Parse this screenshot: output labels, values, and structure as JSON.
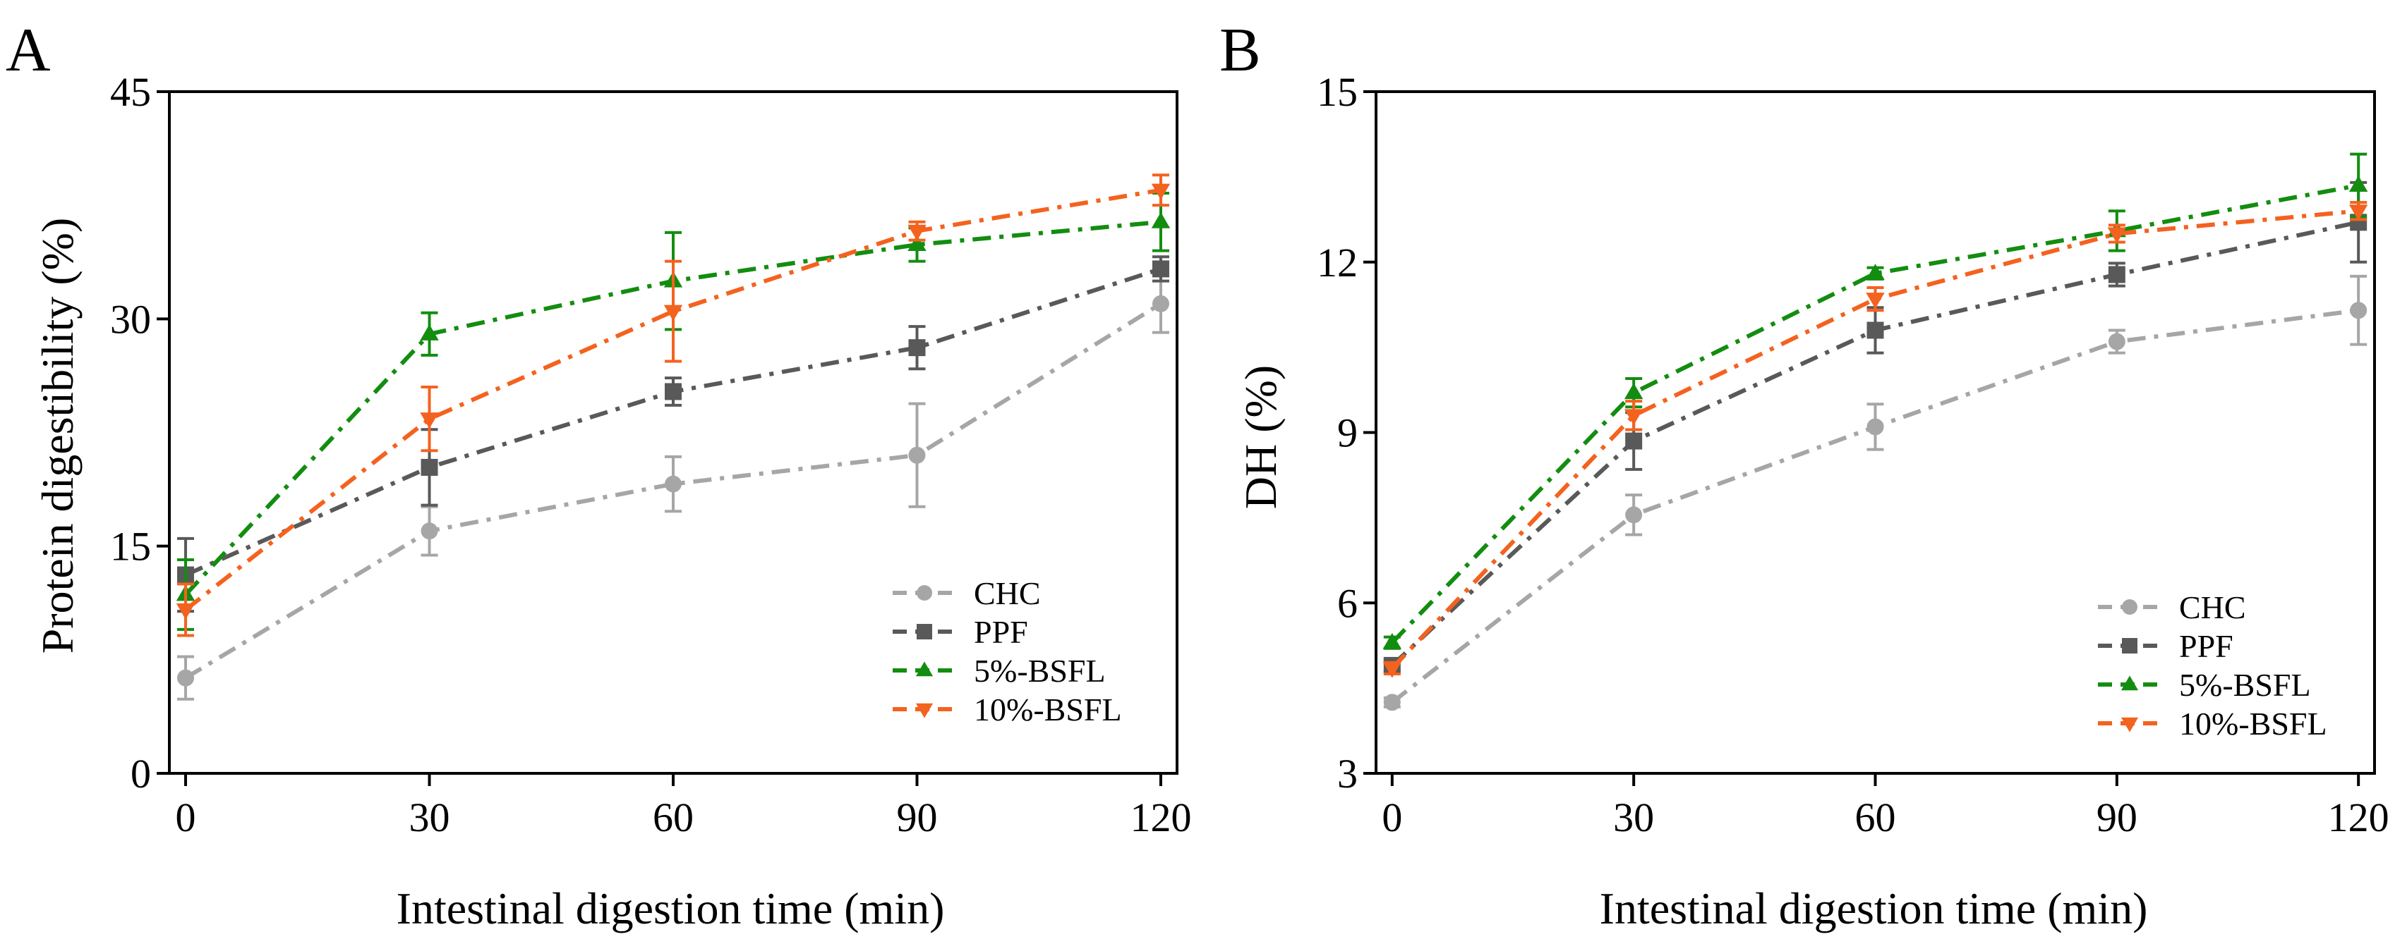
{
  "chart_data": [
    {
      "panel": "A",
      "type": "line",
      "xlabel": "Intestinal digestion time (min)",
      "ylabel": "Protein digestibility (%)",
      "x": [
        0,
        30,
        60,
        90,
        120
      ],
      "xticks": [
        0,
        30,
        60,
        90,
        120
      ],
      "xlim": [
        -2,
        122
      ],
      "yticks": [
        0,
        15,
        30,
        45
      ],
      "ylim": [
        0,
        45
      ],
      "legend_position": "bottom-right",
      "series": [
        {
          "name": "CHC",
          "color": "#a6a6a6",
          "marker": "circle",
          "values": [
            6.3,
            16.0,
            19.1,
            21.0,
            31.0
          ],
          "errors": [
            1.4,
            1.6,
            1.8,
            3.4,
            1.9
          ]
        },
        {
          "name": "PPF",
          "color": "#595959",
          "marker": "square",
          "values": [
            13.1,
            20.2,
            25.2,
            28.1,
            33.3
          ],
          "errors": [
            2.4,
            2.5,
            0.9,
            1.4,
            0.8
          ]
        },
        {
          "name": "5%-BSFL",
          "color": "#138d10",
          "marker": "triangle-up",
          "values": [
            11.8,
            29.0,
            32.5,
            34.9,
            36.4
          ],
          "errors": [
            2.3,
            1.4,
            3.2,
            1.1,
            1.9
          ]
        },
        {
          "name": "10%-BSFL",
          "color": "#f4621f",
          "marker": "triangle-down",
          "values": [
            10.8,
            23.4,
            30.5,
            35.8,
            38.5
          ],
          "errors": [
            1.7,
            2.1,
            3.3,
            0.6,
            1.0
          ]
        }
      ]
    },
    {
      "panel": "B",
      "type": "line",
      "xlabel": "Intestinal digestion time (min)",
      "ylabel": "DH (%)",
      "x": [
        0,
        30,
        60,
        90,
        120
      ],
      "xticks": [
        0,
        30,
        60,
        90,
        120
      ],
      "xlim": [
        -2,
        122
      ],
      "yticks": [
        3,
        6,
        9,
        12,
        15
      ],
      "ylim": [
        3,
        15
      ],
      "legend_position": "bottom-right",
      "series": [
        {
          "name": "CHC",
          "color": "#a6a6a6",
          "marker": "circle",
          "values": [
            4.25,
            7.55,
            9.1,
            10.6,
            11.15
          ],
          "errors": [
            0.08,
            0.35,
            0.4,
            0.2,
            0.6
          ]
        },
        {
          "name": "PPF",
          "color": "#595959",
          "marker": "square",
          "values": [
            4.9,
            8.85,
            10.8,
            11.78,
            12.7
          ],
          "errors": [
            0.1,
            0.5,
            0.4,
            0.2,
            0.7
          ]
        },
        {
          "name": "5%-BSFL",
          "color": "#138d10",
          "marker": "triangle-up",
          "values": [
            5.3,
            9.7,
            11.8,
            12.55,
            13.35
          ],
          "errors": [
            0.1,
            0.25,
            0.1,
            0.35,
            0.55
          ]
        },
        {
          "name": "10%-BSFL",
          "color": "#f4621f",
          "marker": "triangle-down",
          "values": [
            4.85,
            9.3,
            11.35,
            12.5,
            12.9
          ],
          "errors": [
            0.1,
            0.25,
            0.2,
            0.15,
            0.15
          ]
        }
      ]
    }
  ]
}
